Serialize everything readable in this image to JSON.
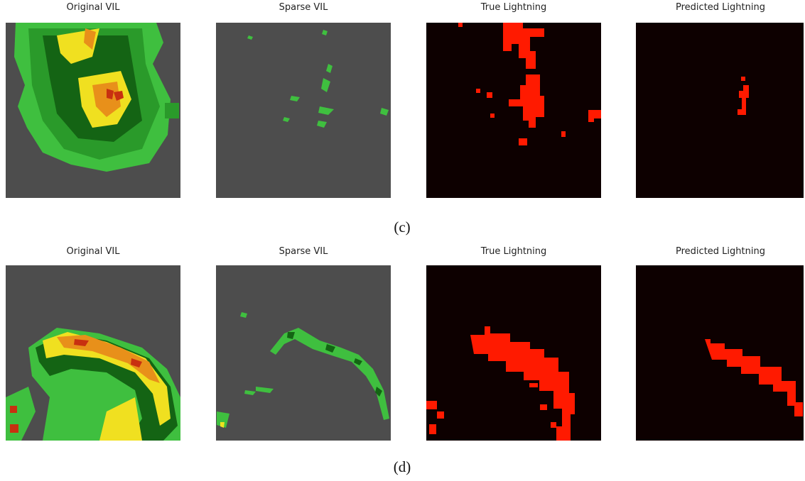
{
  "rows": [
    {
      "caption": "(c)",
      "panels": [
        {
          "title": "Original VIL"
        },
        {
          "title": "Sparse VIL"
        },
        {
          "title": "True Lightning"
        },
        {
          "title": "Predicted Lightning"
        }
      ]
    },
    {
      "caption": "(d)",
      "panels": [
        {
          "title": "Original VIL"
        },
        {
          "title": "Sparse VIL"
        },
        {
          "title": "True Lightning"
        },
        {
          "title": "Predicted Lightning"
        }
      ]
    }
  ]
}
